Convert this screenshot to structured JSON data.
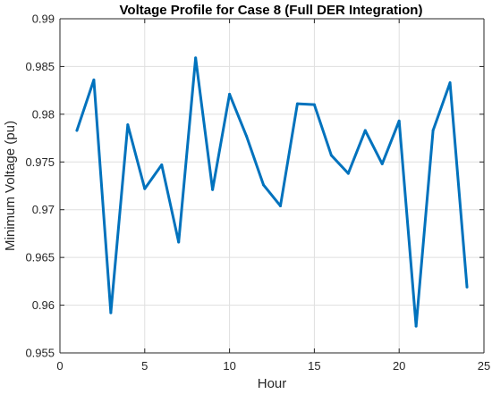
{
  "chart_data": {
    "type": "line",
    "title": "Voltage Profile for Case 8 (Full DER Integration)",
    "xlabel": "Hour",
    "ylabel": "Minimum Voltage (pu)",
    "xlim": [
      0,
      25
    ],
    "ylim": [
      0.955,
      0.99
    ],
    "xticks": [
      0,
      5,
      10,
      15,
      20,
      25
    ],
    "yticks": [
      0.955,
      0.96,
      0.965,
      0.97,
      0.975,
      0.98,
      0.985,
      0.99
    ],
    "xtick_labels": [
      "0",
      "5",
      "10",
      "15",
      "20",
      "25"
    ],
    "ytick_labels": [
      "0.955",
      "0.96",
      "0.965",
      "0.97",
      "0.975",
      "0.98",
      "0.985",
      "0.99"
    ],
    "grid": true,
    "series": [
      {
        "color": "#0072bd",
        "x": [
          1,
          2,
          3,
          4,
          5,
          6,
          7,
          8,
          9,
          10,
          11,
          12,
          13,
          14,
          15,
          16,
          17,
          18,
          19,
          20,
          21,
          22,
          23,
          24
        ],
        "y": [
          0.9783,
          0.9836,
          0.9592,
          0.9789,
          0.9722,
          0.9747,
          0.9666,
          0.9859,
          0.9721,
          0.9821,
          0.9777,
          0.9726,
          0.9704,
          0.9811,
          0.981,
          0.9757,
          0.9738,
          0.9783,
          0.9748,
          0.9793,
          0.9578,
          0.9783,
          0.9833,
          0.9619
        ]
      }
    ]
  }
}
